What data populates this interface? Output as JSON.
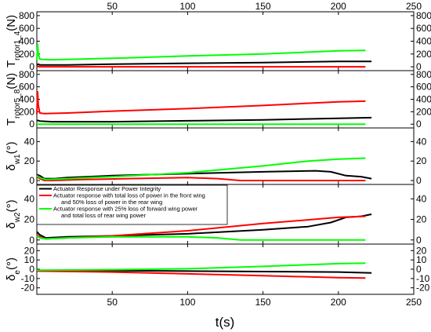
{
  "chart_data": {
    "type": "line",
    "xlabel": "t(s)",
    "xlim": [
      0,
      250
    ],
    "xticks": [
      50,
      100,
      150,
      200,
      250
    ],
    "colors": {
      "integrity": "#000000",
      "front_loss": "#ff0000",
      "forward_loss": "#00ff00"
    },
    "legend": {
      "placement": "top-left of panel 4",
      "entries": [
        {
          "series": "integrity",
          "lines": [
            "Actuator Response under Power Integrity"
          ]
        },
        {
          "series": "front_loss",
          "lines": [
            "Actuator response with total loss of power in the front wing",
            "and 50% loss of power in the rear wing"
          ]
        },
        {
          "series": "forward_loss",
          "lines": [
            "Actuator response with 25% loss of forward wing power",
            "and total loss of rear wing power"
          ]
        }
      ]
    },
    "panels": [
      {
        "id": "rotor1_4",
        "ylabel_main": "T",
        "ylabel_sub": "rotor1_4",
        "ylabel_unit": "(N)",
        "ylim": [
          -60,
          860
        ],
        "yticks": [
          0,
          200,
          400,
          600,
          800
        ],
        "series": [
          {
            "key": "integrity",
            "x": [
              0,
              1,
              2,
              20,
              50,
              100,
              150,
              200,
              222
            ],
            "y": [
              30,
              40,
              30,
              30,
              40,
              55,
              65,
              85,
              85
            ]
          },
          {
            "key": "front_loss",
            "x": [
              0,
              2,
              218
            ],
            "y": [
              10,
              0,
              0
            ]
          },
          {
            "key": "forward_loss",
            "x": [
              0,
              0.5,
              1,
              2,
              4,
              10,
              30,
              60,
              100,
              150,
              200,
              218
            ],
            "y": [
              100,
              350,
              200,
              120,
              115,
              110,
              120,
              140,
              170,
              200,
              250,
              255
            ]
          }
        ]
      },
      {
        "id": "rotor5_8",
        "ylabel_main": "T",
        "ylabel_sub": "rotor5_8",
        "ylabel_unit": "(N)",
        "ylim": [
          -60,
          860
        ],
        "yticks": [
          0,
          200,
          400,
          600,
          800
        ],
        "series": [
          {
            "key": "integrity",
            "x": [
              0,
              1,
              2,
              10,
              50,
              100,
              150,
              200,
              222
            ],
            "y": [
              60,
              60,
              50,
              40,
              40,
              55,
              70,
              95,
              105
            ]
          },
          {
            "key": "front_loss",
            "x": [
              0,
              0.5,
              1,
              2,
              5,
              20,
              50,
              100,
              150,
              200,
              218
            ],
            "y": [
              160,
              520,
              300,
              180,
              170,
              180,
              210,
              250,
              300,
              360,
              370
            ]
          },
          {
            "key": "forward_loss",
            "x": [
              0,
              218
            ],
            "y": [
              0,
              0
            ]
          }
        ]
      },
      {
        "id": "dw1",
        "ylabel_main": "δ",
        "ylabel_sub": "w1",
        "ylabel_unit": "(°)",
        "ylim": [
          -4,
          54
        ],
        "yticks": [
          0,
          20,
          40
        ],
        "series": [
          {
            "key": "integrity",
            "x": [
              0,
              2,
              5,
              8,
              12,
              20,
              50,
              100,
              150,
              185,
              195,
              205,
              215,
              222
            ],
            "y": [
              6,
              5,
              2,
              2,
              2,
              3,
              5,
              7,
              9,
              10,
              9,
              5,
              4,
              2
            ]
          },
          {
            "key": "front_loss",
            "x": [
              0,
              2,
              5,
              10,
              30,
              60,
              100,
              120,
              135,
              145,
              218
            ],
            "y": [
              4,
              2,
              0,
              0,
              1,
              2,
              3,
              2,
              0,
              0,
              0
            ]
          },
          {
            "key": "forward_loss",
            "x": [
              0,
              2,
              6,
              20,
              50,
              100,
              150,
              180,
              200,
              218
            ],
            "y": [
              5,
              3,
              1,
              2,
              4,
              8,
              15,
              20,
              22,
              23
            ]
          }
        ]
      },
      {
        "id": "dw2",
        "ylabel_main": "δ",
        "ylabel_sub": "w2",
        "ylabel_unit": "(°)",
        "ylim": [
          -4,
          54
        ],
        "yticks": [
          0,
          20,
          40
        ],
        "series": [
          {
            "key": "integrity",
            "x": [
              0,
              2,
              6,
              20,
              50,
              100,
              150,
              180,
              195,
              205,
              215,
              222
            ],
            "y": [
              8,
              5,
              2,
              3,
              4,
              6,
              10,
              13,
              17,
              22,
              23,
              25
            ]
          },
          {
            "key": "front_loss",
            "x": [
              0,
              2,
              6,
              20,
              50,
              100,
              150,
              200,
              218
            ],
            "y": [
              5,
              3,
              1,
              2,
              4,
              9,
              16,
              22,
              23
            ]
          },
          {
            "key": "forward_loss",
            "x": [
              0,
              2,
              6,
              20,
              50,
              100,
              120,
              135,
              140,
              218
            ],
            "y": [
              4,
              2,
              1,
              2,
              3,
              3,
              2,
              0,
              0,
              0
            ]
          }
        ]
      },
      {
        "id": "de",
        "ylabel_main": "δ",
        "ylabel_sub": "e",
        "ylabel_unit": "(°)",
        "ylim": [
          -27,
          27
        ],
        "yticks": [
          -20,
          -10,
          0,
          10,
          20
        ],
        "series": [
          {
            "key": "integrity",
            "x": [
              0,
              50,
              100,
              150,
              200,
              222
            ],
            "y": [
              -1.5,
              -1.5,
              -2,
              -2.5,
              -3,
              -4
            ]
          },
          {
            "key": "front_loss",
            "x": [
              0,
              50,
              100,
              150,
              200,
              218
            ],
            "y": [
              -2,
              -3,
              -5,
              -7,
              -9,
              -9.5
            ]
          },
          {
            "key": "forward_loss",
            "x": [
              0,
              50,
              100,
              150,
              200,
              218
            ],
            "y": [
              -1,
              -0.5,
              0.5,
              3,
              6,
              6.5
            ]
          }
        ]
      }
    ]
  }
}
